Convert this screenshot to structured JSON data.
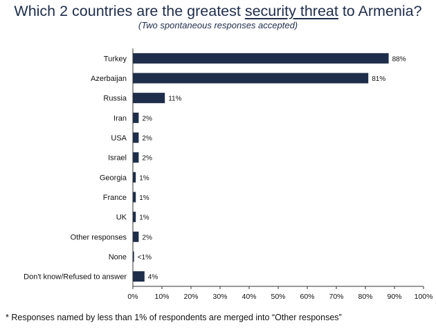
{
  "title": {
    "prefix": "Which 2 countries are the greatest ",
    "underlined": "security threat",
    "suffix": " to Armenia?"
  },
  "subtitle": "(Two spontaneous responses accepted)",
  "footnote": "* Responses named by less than 1% of respondents are merged into “Other responses”",
  "colors": {
    "bar": "#1e2d4a",
    "axis": "#333333",
    "text": "#111111"
  },
  "chart_data": {
    "type": "bar",
    "orientation": "horizontal",
    "categories": [
      "Turkey",
      "Azerbaijan",
      "Russia",
      "Iran",
      "USA",
      "Israel",
      "Georgia",
      "France",
      "UK",
      "Other responses",
      "None",
      "Don't know/Refused to answer"
    ],
    "values": [
      88,
      81,
      11,
      2,
      2,
      2,
      1,
      1,
      1,
      2,
      0.4,
      4
    ],
    "value_labels": [
      "88%",
      "81%",
      "11%",
      "2%",
      "2%",
      "2%",
      "1%",
      "1%",
      "1%",
      "2%",
      "<1%",
      "4%"
    ],
    "xlim": [
      0,
      100
    ],
    "xticks": [
      "0%",
      "10%",
      "20%",
      "30%",
      "40%",
      "50%",
      "60%",
      "70%",
      "80%",
      "90%",
      "100%"
    ],
    "grid": false,
    "legend": "none"
  }
}
